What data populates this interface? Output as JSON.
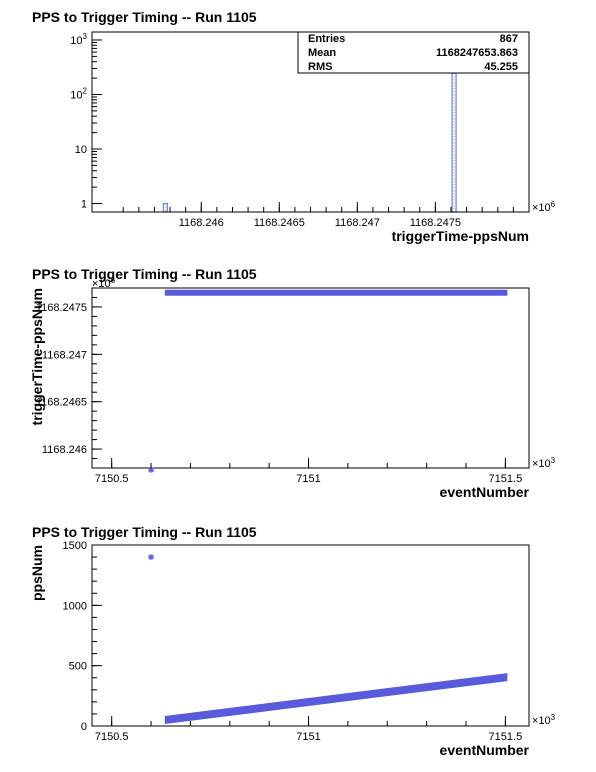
{
  "chart_data": [
    {
      "type": "bar",
      "title": "PPS to Trigger Timing -- Run 1105",
      "xlabel": "triggerTime-ppsNum",
      "ylabel": "",
      "x_multiplier": "×10",
      "x_multiplier_exp": "6",
      "y_scale": "log",
      "y_ticks": [
        {
          "value": 1,
          "base": "1",
          "exp": ""
        },
        {
          "value": 10,
          "base": "10",
          "exp": ""
        },
        {
          "value": 100,
          "base": "10",
          "exp": "2"
        },
        {
          "value": 1000,
          "base": "10",
          "exp": "3"
        }
      ],
      "x_ticks": [
        "1168.246",
        "1168.2465",
        "1168.247",
        "1168.2475"
      ],
      "x_tick_values": [
        1168.246,
        1168.2465,
        1168.247,
        1168.2475
      ],
      "xlim": [
        1168.2453,
        1168.2481
      ],
      "ylim": [
        0.7,
        1400
      ],
      "bars": [
        {
          "x": 1168.24577,
          "value": 1
        },
        {
          "x": 1168.24762,
          "value": 866
        }
      ],
      "bar_color": "#6b86c6",
      "stats": [
        {
          "label": "Entries",
          "value": "867"
        },
        {
          "label": "Mean",
          "value": "1168247653.863"
        },
        {
          "label": "RMS",
          "value": "45.255"
        }
      ]
    },
    {
      "type": "scatter",
      "title": "PPS to Trigger Timing -- Run 1105",
      "xlabel": "eventNumber",
      "ylabel": "triggerTime-ppsNum",
      "x_multiplier": "×10",
      "x_multiplier_exp": "3",
      "y_multiplier": "×10",
      "y_multiplier_exp": "6",
      "x_ticks": [
        "7150.5",
        "7151",
        "7151.5"
      ],
      "x_tick_values": [
        7150.5,
        7151,
        7151.5
      ],
      "y_ticks": [
        "1168.246",
        "1168.2465",
        "1168.247",
        "1168.2475"
      ],
      "y_tick_values": [
        1168.246,
        1168.2465,
        1168.247,
        1168.2475
      ],
      "xlim": [
        7150.45,
        7151.56
      ],
      "ylim": [
        1168.2458,
        1168.2477
      ],
      "points": [
        [
          7150.6,
          1168.24578
        ]
      ],
      "band": {
        "x_start": 7150.64,
        "x_end": 7151.5,
        "y": 1168.24765
      },
      "marker_color": "#5a5adc"
    },
    {
      "type": "scatter",
      "title": "PPS to Trigger Timing -- Run 1105",
      "xlabel": "eventNumber",
      "ylabel": "ppsNum",
      "x_multiplier": "×10",
      "x_multiplier_exp": "3",
      "x_ticks": [
        "7150.5",
        "7151",
        "7151.5"
      ],
      "x_tick_values": [
        7150.5,
        7151,
        7151.5
      ],
      "y_ticks": [
        "0",
        "500",
        "1000",
        "1500"
      ],
      "y_tick_values": [
        0,
        500,
        1000,
        1500
      ],
      "xlim": [
        7150.45,
        7151.56
      ],
      "ylim": [
        0,
        1500
      ],
      "points": [
        [
          7150.6,
          1400
        ]
      ],
      "band": {
        "x_start": 7150.64,
        "x_end": 7151.5,
        "y_start": 50,
        "y_end": 405
      },
      "marker_color": "#5a5adc"
    }
  ]
}
